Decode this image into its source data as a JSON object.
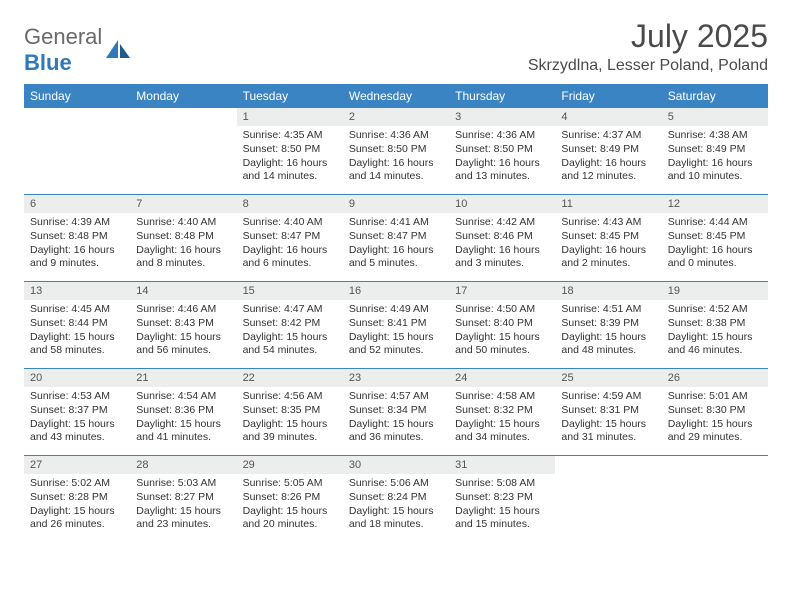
{
  "logo": {
    "general": "General",
    "blue": "Blue"
  },
  "header": {
    "month": "July 2025",
    "location": "Skrzydlna, Lesser Poland, Poland"
  },
  "colors": {
    "header_bar": "#3b84c4",
    "daynum_bg": "#eceded",
    "week_divider": "#3b84c4",
    "logo_gray": "#6a6a6a",
    "logo_blue": "#2f79b9"
  },
  "weekdays": [
    "Sunday",
    "Monday",
    "Tuesday",
    "Wednesday",
    "Thursday",
    "Friday",
    "Saturday"
  ],
  "weeks": [
    [
      null,
      null,
      {
        "n": "1",
        "sr": "Sunrise: 4:35 AM",
        "ss": "Sunset: 8:50 PM",
        "dl": "Daylight: 16 hours and 14 minutes."
      },
      {
        "n": "2",
        "sr": "Sunrise: 4:36 AM",
        "ss": "Sunset: 8:50 PM",
        "dl": "Daylight: 16 hours and 14 minutes."
      },
      {
        "n": "3",
        "sr": "Sunrise: 4:36 AM",
        "ss": "Sunset: 8:50 PM",
        "dl": "Daylight: 16 hours and 13 minutes."
      },
      {
        "n": "4",
        "sr": "Sunrise: 4:37 AM",
        "ss": "Sunset: 8:49 PM",
        "dl": "Daylight: 16 hours and 12 minutes."
      },
      {
        "n": "5",
        "sr": "Sunrise: 4:38 AM",
        "ss": "Sunset: 8:49 PM",
        "dl": "Daylight: 16 hours and 10 minutes."
      }
    ],
    [
      {
        "n": "6",
        "sr": "Sunrise: 4:39 AM",
        "ss": "Sunset: 8:48 PM",
        "dl": "Daylight: 16 hours and 9 minutes."
      },
      {
        "n": "7",
        "sr": "Sunrise: 4:40 AM",
        "ss": "Sunset: 8:48 PM",
        "dl": "Daylight: 16 hours and 8 minutes."
      },
      {
        "n": "8",
        "sr": "Sunrise: 4:40 AM",
        "ss": "Sunset: 8:47 PM",
        "dl": "Daylight: 16 hours and 6 minutes."
      },
      {
        "n": "9",
        "sr": "Sunrise: 4:41 AM",
        "ss": "Sunset: 8:47 PM",
        "dl": "Daylight: 16 hours and 5 minutes."
      },
      {
        "n": "10",
        "sr": "Sunrise: 4:42 AM",
        "ss": "Sunset: 8:46 PM",
        "dl": "Daylight: 16 hours and 3 minutes."
      },
      {
        "n": "11",
        "sr": "Sunrise: 4:43 AM",
        "ss": "Sunset: 8:45 PM",
        "dl": "Daylight: 16 hours and 2 minutes."
      },
      {
        "n": "12",
        "sr": "Sunrise: 4:44 AM",
        "ss": "Sunset: 8:45 PM",
        "dl": "Daylight: 16 hours and 0 minutes."
      }
    ],
    [
      {
        "n": "13",
        "sr": "Sunrise: 4:45 AM",
        "ss": "Sunset: 8:44 PM",
        "dl": "Daylight: 15 hours and 58 minutes."
      },
      {
        "n": "14",
        "sr": "Sunrise: 4:46 AM",
        "ss": "Sunset: 8:43 PM",
        "dl": "Daylight: 15 hours and 56 minutes."
      },
      {
        "n": "15",
        "sr": "Sunrise: 4:47 AM",
        "ss": "Sunset: 8:42 PM",
        "dl": "Daylight: 15 hours and 54 minutes."
      },
      {
        "n": "16",
        "sr": "Sunrise: 4:49 AM",
        "ss": "Sunset: 8:41 PM",
        "dl": "Daylight: 15 hours and 52 minutes."
      },
      {
        "n": "17",
        "sr": "Sunrise: 4:50 AM",
        "ss": "Sunset: 8:40 PM",
        "dl": "Daylight: 15 hours and 50 minutes."
      },
      {
        "n": "18",
        "sr": "Sunrise: 4:51 AM",
        "ss": "Sunset: 8:39 PM",
        "dl": "Daylight: 15 hours and 48 minutes."
      },
      {
        "n": "19",
        "sr": "Sunrise: 4:52 AM",
        "ss": "Sunset: 8:38 PM",
        "dl": "Daylight: 15 hours and 46 minutes."
      }
    ],
    [
      {
        "n": "20",
        "sr": "Sunrise: 4:53 AM",
        "ss": "Sunset: 8:37 PM",
        "dl": "Daylight: 15 hours and 43 minutes."
      },
      {
        "n": "21",
        "sr": "Sunrise: 4:54 AM",
        "ss": "Sunset: 8:36 PM",
        "dl": "Daylight: 15 hours and 41 minutes."
      },
      {
        "n": "22",
        "sr": "Sunrise: 4:56 AM",
        "ss": "Sunset: 8:35 PM",
        "dl": "Daylight: 15 hours and 39 minutes."
      },
      {
        "n": "23",
        "sr": "Sunrise: 4:57 AM",
        "ss": "Sunset: 8:34 PM",
        "dl": "Daylight: 15 hours and 36 minutes."
      },
      {
        "n": "24",
        "sr": "Sunrise: 4:58 AM",
        "ss": "Sunset: 8:32 PM",
        "dl": "Daylight: 15 hours and 34 minutes."
      },
      {
        "n": "25",
        "sr": "Sunrise: 4:59 AM",
        "ss": "Sunset: 8:31 PM",
        "dl": "Daylight: 15 hours and 31 minutes."
      },
      {
        "n": "26",
        "sr": "Sunrise: 5:01 AM",
        "ss": "Sunset: 8:30 PM",
        "dl": "Daylight: 15 hours and 29 minutes."
      }
    ],
    [
      {
        "n": "27",
        "sr": "Sunrise: 5:02 AM",
        "ss": "Sunset: 8:28 PM",
        "dl": "Daylight: 15 hours and 26 minutes."
      },
      {
        "n": "28",
        "sr": "Sunrise: 5:03 AM",
        "ss": "Sunset: 8:27 PM",
        "dl": "Daylight: 15 hours and 23 minutes."
      },
      {
        "n": "29",
        "sr": "Sunrise: 5:05 AM",
        "ss": "Sunset: 8:26 PM",
        "dl": "Daylight: 15 hours and 20 minutes."
      },
      {
        "n": "30",
        "sr": "Sunrise: 5:06 AM",
        "ss": "Sunset: 8:24 PM",
        "dl": "Daylight: 15 hours and 18 minutes."
      },
      {
        "n": "31",
        "sr": "Sunrise: 5:08 AM",
        "ss": "Sunset: 8:23 PM",
        "dl": "Daylight: 15 hours and 15 minutes."
      },
      null,
      null
    ]
  ]
}
